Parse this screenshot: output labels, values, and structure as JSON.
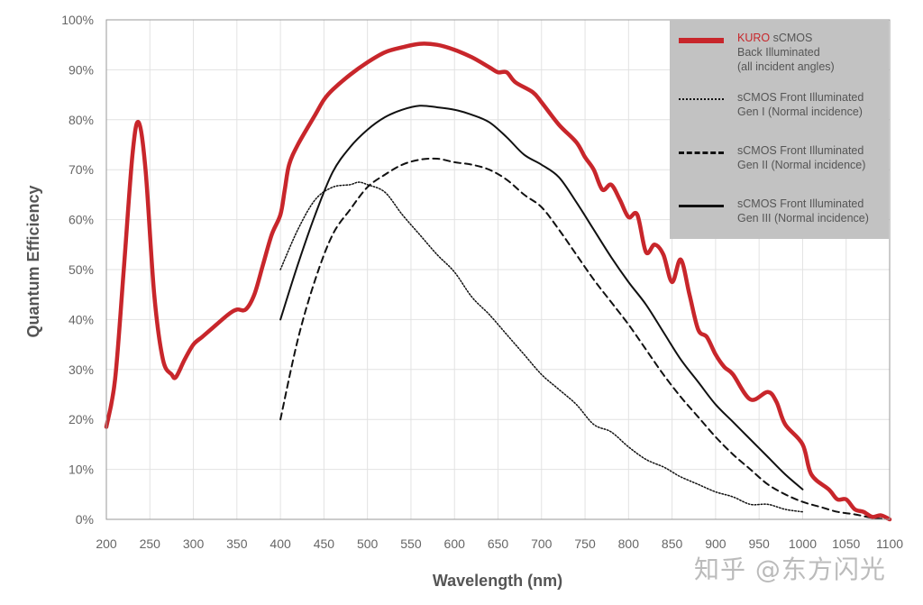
{
  "chart_data": {
    "type": "line",
    "xlabel": "Wavelength (nm)",
    "ylabel": "Quantum Efficiency",
    "xlim": [
      200,
      1100
    ],
    "ylim": [
      0,
      100
    ],
    "x_ticks": [
      "200",
      "250",
      "300",
      "350",
      "400",
      "450",
      "500",
      "550",
      "600",
      "650",
      "700",
      "750",
      "800",
      "850",
      "900",
      "950",
      "1000",
      "1050",
      "1100"
    ],
    "y_ticks": [
      "0%",
      "10%",
      "20%",
      "30%",
      "40%",
      "50%",
      "60%",
      "70%",
      "80%",
      "90%",
      "100%"
    ],
    "grid": true,
    "legend_position": "top-right",
    "series": [
      {
        "name": "KURO sCMOS Back Illuminated (all incident angles)",
        "style": "solid-thick",
        "color": "#c8262b",
        "x": [
          200,
          210,
          220,
          230,
          237,
          245,
          255,
          265,
          275,
          280,
          290,
          300,
          310,
          320,
          340,
          350,
          360,
          370,
          380,
          390,
          400,
          405,
          410,
          420,
          440,
          450,
          460,
          480,
          500,
          520,
          540,
          560,
          580,
          600,
          620,
          640,
          650,
          660,
          670,
          690,
          700,
          720,
          740,
          750,
          760,
          770,
          780,
          790,
          800,
          810,
          820,
          830,
          840,
          850,
          860,
          870,
          880,
          890,
          900,
          910,
          920,
          940,
          960,
          970,
          980,
          1000,
          1010,
          1030,
          1040,
          1050,
          1060,
          1070,
          1080,
          1090,
          1100
        ],
        "y": [
          18.5,
          28,
          50,
          73,
          79.5,
          70,
          45,
          32,
          29,
          28.5,
          32,
          35,
          36.5,
          38,
          41,
          42,
          42,
          45,
          51,
          57,
          61,
          66,
          71,
          75,
          81,
          84,
          86,
          89,
          91.5,
          93.5,
          94.5,
          95.2,
          95,
          94,
          92.5,
          90.5,
          89.5,
          89.5,
          87.5,
          85.5,
          83.5,
          79,
          75.5,
          72.5,
          70,
          66,
          67,
          64,
          60.5,
          61,
          53.5,
          55,
          53,
          47.5,
          52,
          45,
          38,
          36.5,
          33,
          30.5,
          29,
          24,
          25.5,
          23.5,
          19,
          15,
          9,
          6,
          4,
          4,
          2,
          1.5,
          0.5,
          0.8,
          0
        ]
      },
      {
        "name": "sCMOS Front Illuminated Gen I (Normal incidence)",
        "style": "dotted",
        "color": "#111111",
        "x": [
          400,
          420,
          440,
          460,
          480,
          490,
          500,
          520,
          540,
          560,
          580,
          600,
          620,
          640,
          660,
          680,
          700,
          720,
          740,
          760,
          780,
          800,
          820,
          840,
          850,
          860,
          880,
          900,
          920,
          940,
          960,
          980,
          1000
        ],
        "y": [
          50,
          58,
          64,
          66.5,
          67,
          67.5,
          67,
          65.5,
          61,
          57,
          53,
          49.5,
          44.5,
          41,
          37,
          33,
          29,
          26,
          23,
          19,
          17.5,
          14.5,
          12,
          10.5,
          9.5,
          8.5,
          7,
          5.5,
          4.5,
          3,
          3,
          2,
          1.5
        ]
      },
      {
        "name": "sCMOS Front Illuminated Gen II (Normal incidence)",
        "style": "dashed",
        "color": "#111111",
        "x": [
          400,
          420,
          440,
          460,
          480,
          500,
          520,
          540,
          560,
          580,
          600,
          620,
          640,
          660,
          680,
          700,
          720,
          740,
          760,
          780,
          800,
          820,
          840,
          860,
          880,
          900,
          920,
          940,
          960,
          980,
          1000,
          1020,
          1040,
          1060,
          1080,
          1100
        ],
        "y": [
          20,
          36,
          48,
          57,
          62,
          66.5,
          69,
          71,
          72,
          72.2,
          71.5,
          71,
          70,
          68,
          65,
          62.5,
          58,
          53,
          48,
          43.5,
          39,
          34,
          29,
          24.5,
          20.5,
          16.5,
          13,
          10,
          7,
          5,
          3.5,
          2.5,
          1.5,
          1,
          0.3,
          0
        ]
      },
      {
        "name": "sCMOS Front Illuminated Gen III (Normal incidence)",
        "style": "solid",
        "color": "#111111",
        "x": [
          400,
          420,
          440,
          460,
          480,
          500,
          520,
          540,
          560,
          580,
          600,
          620,
          640,
          660,
          680,
          700,
          720,
          740,
          760,
          780,
          800,
          820,
          840,
          860,
          880,
          900,
          920,
          940,
          960,
          980,
          1000
        ],
        "y": [
          40,
          51,
          61,
          69.5,
          74.5,
          78,
          80.5,
          82,
          82.8,
          82.5,
          82,
          81,
          79.5,
          76.5,
          73,
          71,
          68.5,
          63.5,
          58,
          52.5,
          47.5,
          43,
          37.5,
          32,
          27.5,
          23,
          19.5,
          16,
          12.5,
          9,
          6
        ]
      }
    ]
  },
  "legend": {
    "items": [
      {
        "brand": "KURO",
        "text": " sCMOS\nBack Illuminated\n(all incident angles)"
      },
      {
        "text": "sCMOS Front Illuminated\nGen I (Normal incidence)"
      },
      {
        "text": "sCMOS Front Illuminated\nGen II (Normal incidence)"
      },
      {
        "text": "sCMOS Front Illuminated\nGen III (Normal incidence)"
      }
    ]
  },
  "watermark": "知乎 @东方闪光"
}
